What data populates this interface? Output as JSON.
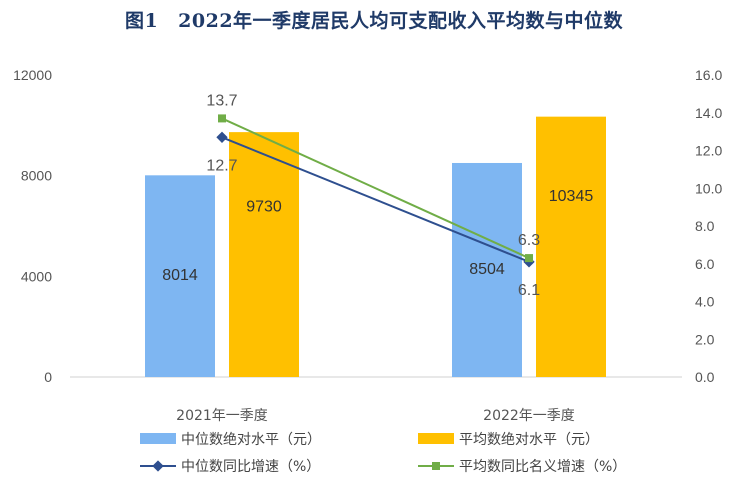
{
  "title": {
    "number": "图1",
    "text": "2022年一季度居民人均可支配收入平均数与中位数"
  },
  "legend": {
    "median_level": "中位数绝对水平（元）",
    "mean_level": "平均数绝对水平（元）",
    "median_growth": "中位数同比增速（%）",
    "mean_growth": "平均数同比名义增速（%）"
  },
  "colors": {
    "median_bar": "#7eb6f2",
    "mean_bar": "#ffc000",
    "median_line": "#2e4f8f",
    "mean_line": "#70ad47"
  },
  "chart_data": {
    "type": "bar",
    "categories": [
      "2021年一季度",
      "2022年一季度"
    ],
    "series": [
      {
        "name": "中位数绝对水平（元）",
        "axis": "left",
        "type": "bar",
        "values": [
          8014,
          8504
        ]
      },
      {
        "name": "平均数绝对水平（元）",
        "axis": "left",
        "type": "bar",
        "values": [
          9730,
          10345
        ]
      },
      {
        "name": "中位数同比增速（%）",
        "axis": "right",
        "type": "line",
        "values": [
          12.7,
          6.1
        ]
      },
      {
        "name": "平均数同比名义增速（%）",
        "axis": "right",
        "type": "line",
        "values": [
          13.7,
          6.3
        ]
      }
    ],
    "y_left": {
      "range": [
        0,
        12000
      ],
      "ticks": [
        "0",
        "4000",
        "8000",
        "12000"
      ]
    },
    "y_right": {
      "range": [
        0,
        16
      ],
      "ticks": [
        "0.0",
        "2.0",
        "4.0",
        "6.0",
        "8.0",
        "10.0",
        "12.0",
        "14.0",
        "16.0"
      ]
    },
    "bar_labels": [
      [
        "8014",
        "9730"
      ],
      [
        "8504",
        "10345"
      ]
    ],
    "line_labels": [
      [
        "12.7",
        "6.1"
      ],
      [
        "13.7",
        "6.3"
      ]
    ],
    "grid": false,
    "legend_position": "bottom"
  }
}
